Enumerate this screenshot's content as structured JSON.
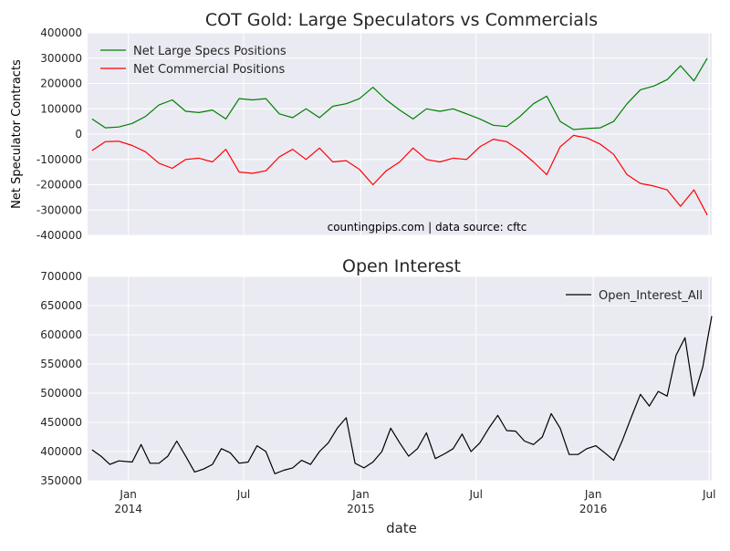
{
  "chart_data": [
    {
      "type": "line",
      "title": "COT Gold: Large Speculators vs Commercials",
      "ylabel": "Net Speculator Contracts",
      "xlabel": "",
      "ylim": [
        -400000,
        400000
      ],
      "yticks": [
        -400000,
        -300000,
        -200000,
        -100000,
        0,
        100000,
        200000,
        300000,
        400000
      ],
      "xlim": [
        "2013-10-29",
        "2016-07-05"
      ],
      "grid": true,
      "legend_position": "upper left",
      "annotation": "countingpips.com | data source: cftc",
      "x": [
        "2013-11-05",
        "2013-11-26",
        "2013-12-17",
        "2014-01-07",
        "2014-01-28",
        "2014-02-18",
        "2014-03-11",
        "2014-04-01",
        "2014-04-22",
        "2014-05-13",
        "2014-06-03",
        "2014-06-24",
        "2014-07-15",
        "2014-08-05",
        "2014-08-26",
        "2014-09-16",
        "2014-10-07",
        "2014-10-28",
        "2014-11-18",
        "2014-12-09",
        "2014-12-30",
        "2015-01-20",
        "2015-02-10",
        "2015-03-03",
        "2015-03-24",
        "2015-04-14",
        "2015-05-05",
        "2015-05-26",
        "2015-06-16",
        "2015-07-07",
        "2015-07-28",
        "2015-08-18",
        "2015-09-08",
        "2015-09-29",
        "2015-10-20",
        "2015-11-10",
        "2015-12-01",
        "2015-12-22",
        "2016-01-12",
        "2016-02-02",
        "2016-02-23",
        "2016-03-15",
        "2016-04-05",
        "2016-04-26",
        "2016-05-17",
        "2016-06-07",
        "2016-06-28"
      ],
      "series": [
        {
          "name": "Net Large Specs Positions",
          "color": "#008000",
          "values": [
            60000,
            25000,
            28000,
            42000,
            70000,
            115000,
            135000,
            90000,
            85000,
            95000,
            60000,
            140000,
            135000,
            140000,
            80000,
            65000,
            100000,
            65000,
            110000,
            120000,
            140000,
            185000,
            135000,
            95000,
            60000,
            100000,
            90000,
            100000,
            80000,
            60000,
            35000,
            30000,
            70000,
            120000,
            150000,
            50000,
            18000,
            22000,
            25000,
            50000,
            120000,
            175000,
            190000,
            215000,
            270000,
            210000,
            300000
          ]
        },
        {
          "name": "Net Commercial Positions",
          "color": "#ff0000",
          "values": [
            -65000,
            -30000,
            -28000,
            -45000,
            -70000,
            -115000,
            -135000,
            -100000,
            -95000,
            -110000,
            -60000,
            -150000,
            -155000,
            -145000,
            -90000,
            -60000,
            -100000,
            -55000,
            -110000,
            -105000,
            -140000,
            -200000,
            -145000,
            -110000,
            -55000,
            -100000,
            -110000,
            -95000,
            -100000,
            -50000,
            -20000,
            -30000,
            -65000,
            -110000,
            -160000,
            -50000,
            -5000,
            -15000,
            -40000,
            -80000,
            -160000,
            -195000,
            -205000,
            -220000,
            -285000,
            -220000,
            -320000
          ]
        }
      ]
    },
    {
      "type": "line",
      "title": "Open Interest",
      "xlabel": "date",
      "ylabel": "",
      "ylim": [
        350000,
        700000
      ],
      "yticks": [
        350000,
        400000,
        450000,
        500000,
        550000,
        600000,
        650000,
        700000
      ],
      "xlim": [
        "2013-10-29",
        "2016-07-05"
      ],
      "xticks": [
        {
          "date": "2014-01-01",
          "label": "Jan",
          "year": "2014"
        },
        {
          "date": "2014-07-01",
          "label": "Jul",
          "year": ""
        },
        {
          "date": "2015-01-01",
          "label": "Jan",
          "year": "2015"
        },
        {
          "date": "2015-07-01",
          "label": "Jul",
          "year": ""
        },
        {
          "date": "2016-01-01",
          "label": "Jan",
          "year": "2016"
        },
        {
          "date": "2016-07-01",
          "label": "Jul",
          "year": ""
        }
      ],
      "grid": true,
      "legend_position": "upper right",
      "series": [
        {
          "name": "Open_Interest_All",
          "color": "#000000",
          "x": [
            "2013-11-05",
            "2013-11-19",
            "2013-12-03",
            "2013-12-17",
            "2014-01-07",
            "2014-01-21",
            "2014-02-04",
            "2014-02-18",
            "2014-03-04",
            "2014-03-18",
            "2014-04-01",
            "2014-04-15",
            "2014-04-29",
            "2014-05-13",
            "2014-05-27",
            "2014-06-10",
            "2014-06-24",
            "2014-07-08",
            "2014-07-22",
            "2014-08-05",
            "2014-08-19",
            "2014-09-02",
            "2014-09-16",
            "2014-09-30",
            "2014-10-14",
            "2014-10-28",
            "2014-11-11",
            "2014-11-25",
            "2014-12-09",
            "2014-12-23",
            "2015-01-06",
            "2015-01-20",
            "2015-02-03",
            "2015-02-17",
            "2015-03-03",
            "2015-03-17",
            "2015-03-31",
            "2015-04-14",
            "2015-04-28",
            "2015-05-12",
            "2015-05-26",
            "2015-06-09",
            "2015-06-23",
            "2015-07-07",
            "2015-07-21",
            "2015-08-04",
            "2015-08-18",
            "2015-09-01",
            "2015-09-15",
            "2015-09-29",
            "2015-10-13",
            "2015-10-27",
            "2015-11-10",
            "2015-11-24",
            "2015-12-08",
            "2015-12-22",
            "2016-01-05",
            "2016-01-19",
            "2016-02-02",
            "2016-02-16",
            "2016-03-01",
            "2016-03-15",
            "2016-03-29",
            "2016-04-12",
            "2016-04-26",
            "2016-05-10",
            "2016-05-24",
            "2016-06-07",
            "2016-06-21",
            "2016-06-28",
            "2016-07-05"
          ],
          "values": [
            403000,
            392000,
            378000,
            384000,
            382000,
            412000,
            380000,
            380000,
            392000,
            418000,
            392000,
            365000,
            370000,
            378000,
            405000,
            398000,
            380000,
            382000,
            410000,
            400000,
            362000,
            368000,
            372000,
            385000,
            378000,
            400000,
            415000,
            440000,
            458000,
            380000,
            372000,
            382000,
            400000,
            440000,
            415000,
            392000,
            405000,
            432000,
            388000,
            396000,
            405000,
            430000,
            400000,
            415000,
            440000,
            462000,
            436000,
            435000,
            418000,
            412000,
            425000,
            465000,
            440000,
            395000,
            395000,
            405000,
            410000,
            398000,
            385000,
            420000,
            460000,
            498000,
            478000,
            503000,
            495000,
            565000,
            595000,
            495000,
            545000,
            590000,
            632000
          ]
        }
      ]
    }
  ]
}
